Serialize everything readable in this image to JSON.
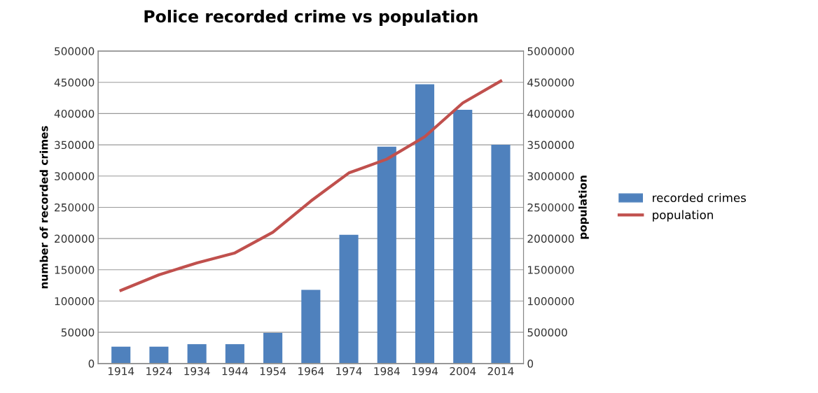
{
  "chart_data": {
    "type": "bar",
    "title": "Police recorded crime vs population",
    "ylabel": "number of recorded crimes",
    "y2label": "population",
    "categories": [
      "1914",
      "1924",
      "1934",
      "1944",
      "1954",
      "1964",
      "1974",
      "1984",
      "1994",
      "2004",
      "2014"
    ],
    "series": [
      {
        "name": "recorded crimes",
        "color": "#4f81bd",
        "values": [
          27000,
          27000,
          31000,
          31000,
          49000,
          118000,
          206000,
          347000,
          447000,
          406000,
          350000
        ]
      },
      {
        "name": "population",
        "type": "line",
        "axis": "y2",
        "color": "#c0504d",
        "values": [
          1170000,
          1420000,
          1610000,
          1770000,
          2100000,
          2600000,
          3050000,
          3270000,
          3630000,
          4170000,
          4520000
        ]
      }
    ],
    "ylim": [
      0,
      500000
    ],
    "yticks": [
      0,
      50000,
      100000,
      150000,
      200000,
      250000,
      300000,
      350000,
      400000,
      450000,
      500000
    ],
    "y2lim": [
      0,
      5000000
    ],
    "y2ticks": [
      0,
      500000,
      1000000,
      1500000,
      2000000,
      2500000,
      3000000,
      3500000,
      4000000,
      4500000,
      5000000
    ],
    "grid": "y",
    "legend": "right"
  }
}
